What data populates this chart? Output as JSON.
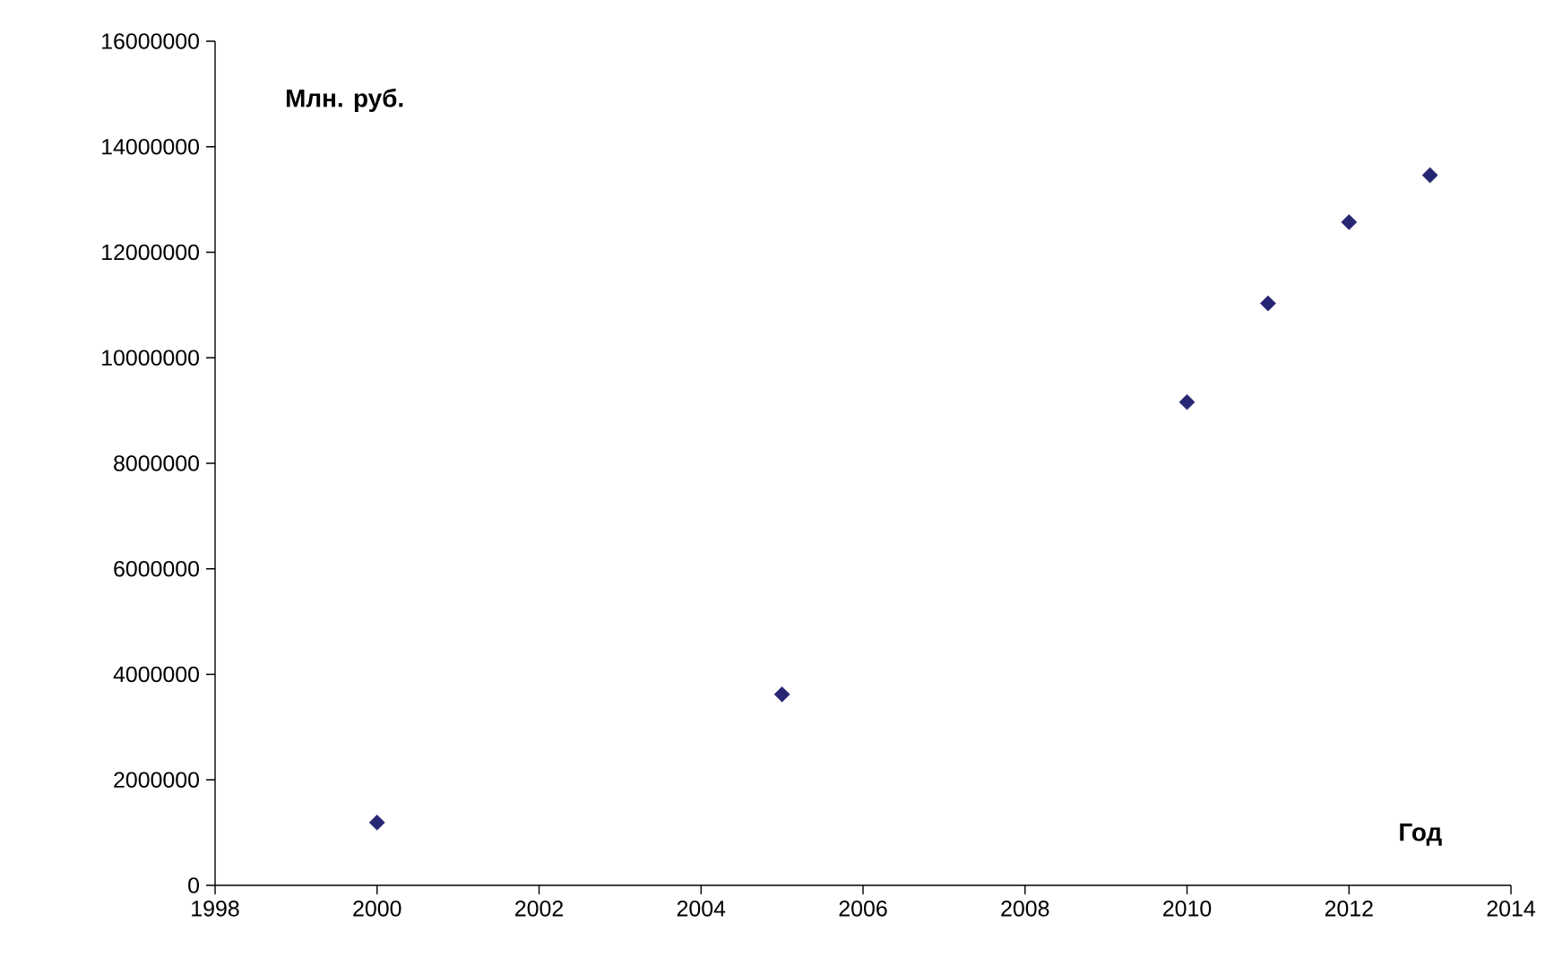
{
  "chart_data": {
    "type": "scatter",
    "xlabel": "Год",
    "ylabel": "Млн. руб.",
    "x": [
      2000,
      2005,
      2010,
      2011,
      2012,
      2013
    ],
    "series": [
      {
        "color": "#262673",
        "values": [
          1190000,
          3620000,
          9160000,
          11030000,
          12570000,
          13460000
        ]
      }
    ],
    "xlim": [
      1998,
      2014
    ],
    "xticks": [
      1998,
      2000,
      2002,
      2004,
      2006,
      2008,
      2010,
      2012,
      2014
    ],
    "ylim": [
      0,
      16000000
    ],
    "yticks": [
      0,
      2000000,
      4000000,
      6000000,
      8000000,
      10000000,
      12000000,
      14000000,
      16000000
    ],
    "marker": "diamond"
  }
}
